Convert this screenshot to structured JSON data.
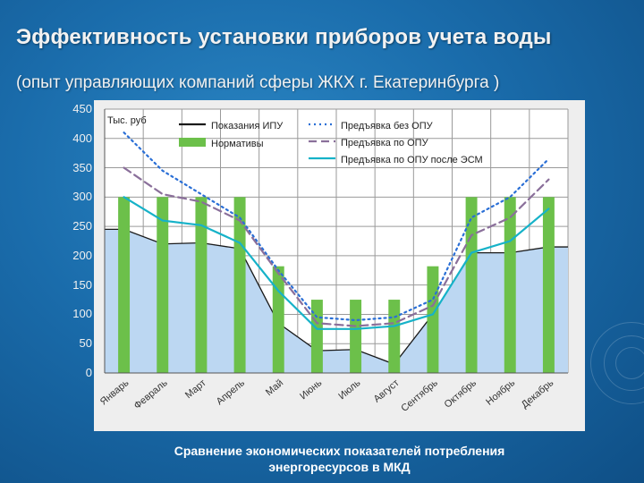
{
  "title": "Эффективность установки приборов учета воды",
  "subtitle": "(опыт  управляющих компаний сферы ЖКХ г. Екатеринбурга )",
  "caption_line1": "Сравнение экономических показателей потребления",
  "caption_line2": "энергоресурсов в МКД",
  "colors": {
    "background": "#1a6cab",
    "area_fill": "#bcd7f2",
    "bar": "#6cc04a",
    "ipu_line": "#1a1a1a",
    "no_odn": "#2a6fd6",
    "odn": "#8a6f9a",
    "odn_esm": "#16b2c8"
  },
  "chart_data": {
    "type": "bar",
    "ylabel": "Тыс. руб",
    "ylim": [
      0,
      450
    ],
    "yticks": [
      0,
      50,
      100,
      150,
      200,
      250,
      300,
      350,
      400,
      450
    ],
    "categories": [
      "Январь",
      "Февраль",
      "Март",
      "Апрель",
      "Май",
      "Июнь",
      "Июль",
      "Август",
      "Сентябрь",
      "Октябрь",
      "Ноябрь",
      "Декабрь"
    ],
    "series": [
      {
        "name": "Показания ИПУ",
        "kind": "area",
        "values": [
          245,
          220,
          222,
          212,
          85,
          38,
          40,
          15,
          100,
          205,
          205,
          215
        ]
      },
      {
        "name": "Нормативы",
        "kind": "bar",
        "values": [
          300,
          300,
          300,
          300,
          182,
          125,
          125,
          125,
          182,
          300,
          300,
          300
        ]
      },
      {
        "name": "Предъявка без ОПУ",
        "kind": "line",
        "style": "dotted",
        "values": [
          410,
          345,
          305,
          265,
          175,
          95,
          90,
          95,
          125,
          265,
          300,
          365
        ]
      },
      {
        "name": "Предъявка по ОПУ",
        "kind": "line",
        "style": "dashed",
        "values": [
          350,
          305,
          292,
          260,
          170,
          85,
          80,
          85,
          115,
          235,
          265,
          330
        ]
      },
      {
        "name": "Предъявка по ОПУ после ЭСМ",
        "kind": "line",
        "style": "solid",
        "values": [
          300,
          260,
          252,
          222,
          140,
          75,
          75,
          80,
          100,
          205,
          225,
          280
        ]
      }
    ],
    "legend_position": "top",
    "grid": true
  }
}
